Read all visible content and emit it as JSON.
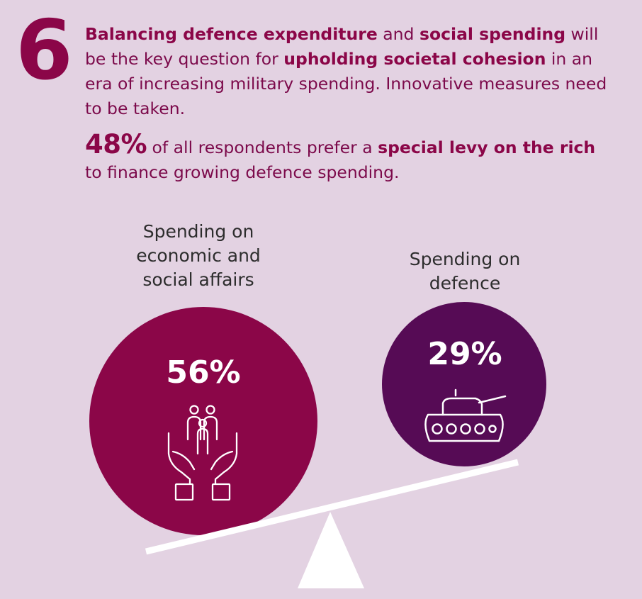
{
  "number": "6",
  "intro": {
    "part1": "Balancing defence expenditure",
    "part2": " and ",
    "part3": "social spending",
    "part4": " will be the key question for ",
    "part5": "upholding societal cohesion",
    "part6": " in an era of increasing military spending. Innovative measures need to be taken."
  },
  "stat": {
    "percent": "48%",
    "part1": " of all respondents prefer a ",
    "part2": "special levy on the rich",
    "part3": " to finance growing defence spending."
  },
  "left_circle": {
    "label_lines": [
      "Spending on",
      "economic and",
      "social affairs"
    ],
    "value": "56%",
    "icon": "family-in-hands-icon",
    "color": "#8b0648"
  },
  "right_circle": {
    "label_lines": [
      "Spending on",
      "defence"
    ],
    "value": "29%",
    "icon": "tank-icon",
    "color": "#560b55"
  },
  "colors": {
    "background": "#e3d2e2",
    "accent": "#8b0648",
    "scale": "#ffffff"
  }
}
